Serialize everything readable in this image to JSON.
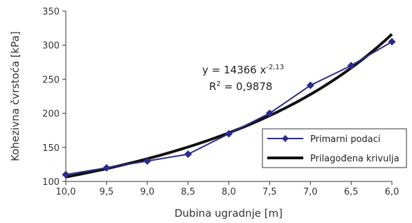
{
  "chart_data": {
    "type": "line",
    "title": "",
    "xlabel": "Dubina ugradnje [m]",
    "ylabel": "Kohezivna čvrstoća [kPa]",
    "x_ticks": [
      "10,0",
      "9,5",
      "9,0",
      "8,5",
      "8,0",
      "7,5",
      "7,0",
      "6,5",
      "6,0"
    ],
    "y_ticks": [
      "100",
      "150",
      "200",
      "250",
      "300",
      "350"
    ],
    "xlim": [
      10.0,
      6.0
    ],
    "x_reversed": true,
    "ylim": [
      100,
      350
    ],
    "grid": false,
    "legend_position": "right",
    "series": [
      {
        "name": "Primarni podaci",
        "color": "#2b2b8c",
        "marker": "diamond",
        "x": [
          10.0,
          9.5,
          9.0,
          8.5,
          8.0,
          7.5,
          7.0,
          6.5,
          6.0
        ],
        "y": [
          110,
          120,
          130,
          140,
          170,
          200,
          241,
          270,
          305
        ]
      },
      {
        "name": "Prilagođena krivulja",
        "color": "#111111",
        "marker": "none",
        "equation": {
          "a": 14366,
          "b": -2.13
        }
      }
    ],
    "annotation": {
      "equation_prefix": "y = 14366 x",
      "equation_exponent": "-2,13",
      "r2_prefix": "R",
      "r2_exponent": "2",
      "r2_value": " = 0,9878"
    }
  }
}
